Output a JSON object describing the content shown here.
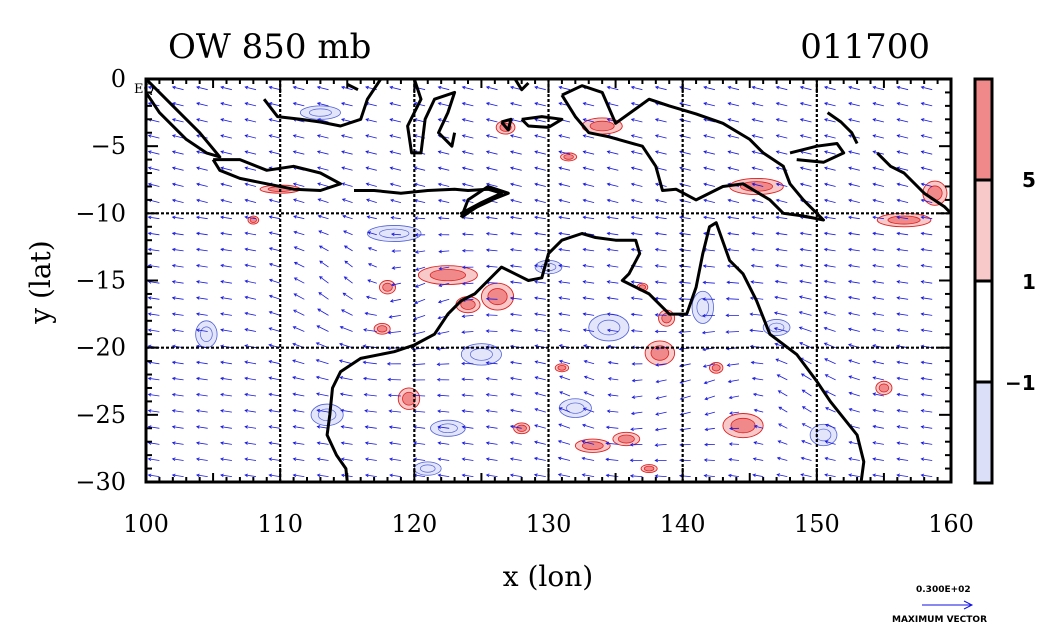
{
  "chart_data": {
    "type": "contour-map-with-vectors",
    "title_left": "OW 850 mb",
    "title_right": "011700",
    "xlabel": "x (lon)",
    "ylabel": "y (lat)",
    "xlim": [
      100,
      160
    ],
    "ylim": [
      -30,
      0
    ],
    "xticks": [
      100,
      110,
      120,
      130,
      140,
      150,
      160
    ],
    "yticks": [
      0,
      -5,
      -10,
      -15,
      -20,
      -25,
      -30
    ],
    "ytick_labels": [
      "0",
      "−5",
      "−10",
      "−15",
      "−20",
      "−25",
      "−30"
    ],
    "corner_label": "EQ",
    "gridlines_x": [
      110,
      120,
      130,
      140,
      150
    ],
    "gridlines_y": [
      -10,
      -20
    ],
    "colorbar": {
      "levels": [
        "5",
        "1",
        "−1"
      ],
      "bands": [
        {
          "range": "> 5",
          "color": "#f08a8a"
        },
        {
          "range": "1 to 5",
          "color": "#f8c9c9"
        },
        {
          "range": "-1 to 1",
          "color": "#ffffff"
        },
        {
          "range": "< -1",
          "color": "#dcdff8"
        }
      ]
    },
    "vector_legend": {
      "value": "0.300E+02",
      "label": "MAXIMUM VECTOR"
    },
    "positive_blobs": [
      {
        "lon": 122.5,
        "lat": -14.6,
        "rx": 2.2,
        "ry": 0.7
      },
      {
        "lon": 126.2,
        "lat": -16.2,
        "rx": 1.2,
        "ry": 1.0
      },
      {
        "lon": 124.0,
        "lat": -16.8,
        "rx": 0.9,
        "ry": 0.6
      },
      {
        "lon": 138.3,
        "lat": -20.4,
        "rx": 1.1,
        "ry": 0.9
      },
      {
        "lon": 138.8,
        "lat": -17.8,
        "rx": 0.6,
        "ry": 0.6
      },
      {
        "lon": 119.6,
        "lat": -23.8,
        "rx": 0.8,
        "ry": 0.8
      },
      {
        "lon": 118.0,
        "lat": -15.5,
        "rx": 0.6,
        "ry": 0.5
      },
      {
        "lon": 117.6,
        "lat": -18.6,
        "rx": 0.6,
        "ry": 0.4
      },
      {
        "lon": 133.3,
        "lat": -27.3,
        "rx": 1.3,
        "ry": 0.5
      },
      {
        "lon": 135.8,
        "lat": -26.8,
        "rx": 1.0,
        "ry": 0.5
      },
      {
        "lon": 144.5,
        "lat": -25.8,
        "rx": 1.5,
        "ry": 0.9
      },
      {
        "lon": 128.0,
        "lat": -26.0,
        "rx": 0.6,
        "ry": 0.4
      },
      {
        "lon": 156.5,
        "lat": -10.5,
        "rx": 2.0,
        "ry": 0.5
      },
      {
        "lon": 158.8,
        "lat": -8.5,
        "rx": 0.9,
        "ry": 0.9
      },
      {
        "lon": 137.0,
        "lat": -15.5,
        "rx": 0.4,
        "ry": 0.3
      },
      {
        "lon": 142.5,
        "lat": -21.5,
        "rx": 0.5,
        "ry": 0.4
      },
      {
        "lon": 155.0,
        "lat": -23.0,
        "rx": 0.6,
        "ry": 0.5
      },
      {
        "lon": 131.5,
        "lat": -5.8,
        "rx": 0.6,
        "ry": 0.3
      },
      {
        "lon": 126.8,
        "lat": -3.6,
        "rx": 0.7,
        "ry": 0.5
      },
      {
        "lon": 110.0,
        "lat": -8.2,
        "rx": 1.5,
        "ry": 0.3
      },
      {
        "lon": 137.5,
        "lat": -29.0,
        "rx": 0.6,
        "ry": 0.3
      },
      {
        "lon": 145.5,
        "lat": -8.0,
        "rx": 2.0,
        "ry": 0.6
      },
      {
        "lon": 134.0,
        "lat": -3.5,
        "rx": 1.5,
        "ry": 0.6
      },
      {
        "lon": 131.0,
        "lat": -21.5,
        "rx": 0.5,
        "ry": 0.3
      },
      {
        "lon": 108.0,
        "lat": -10.5,
        "rx": 0.4,
        "ry": 0.3
      }
    ],
    "negative_blobs": [
      {
        "lon": 125.0,
        "lat": -20.5,
        "rx": 1.5,
        "ry": 0.8
      },
      {
        "lon": 134.5,
        "lat": -18.5,
        "rx": 1.5,
        "ry": 1.0
      },
      {
        "lon": 132.0,
        "lat": -24.5,
        "rx": 1.2,
        "ry": 0.7
      },
      {
        "lon": 122.5,
        "lat": -26.0,
        "rx": 1.3,
        "ry": 0.6
      },
      {
        "lon": 113.5,
        "lat": -25.0,
        "rx": 1.2,
        "ry": 0.8
      },
      {
        "lon": 104.5,
        "lat": -19.0,
        "rx": 0.8,
        "ry": 1.0
      },
      {
        "lon": 130.0,
        "lat": -14.0,
        "rx": 1.0,
        "ry": 0.5
      },
      {
        "lon": 141.5,
        "lat": -17.0,
        "rx": 0.8,
        "ry": 1.2
      },
      {
        "lon": 147.0,
        "lat": -18.5,
        "rx": 1.0,
        "ry": 0.6
      },
      {
        "lon": 150.5,
        "lat": -26.5,
        "rx": 1.0,
        "ry": 0.8
      },
      {
        "lon": 118.5,
        "lat": -11.5,
        "rx": 2.0,
        "ry": 0.6
      },
      {
        "lon": 113.0,
        "lat": -2.5,
        "rx": 1.5,
        "ry": 0.5
      },
      {
        "lon": 121.0,
        "lat": -29.0,
        "rx": 1.0,
        "ry": 0.5
      }
    ],
    "coastlines": [
      {
        "name": "australia-west-north",
        "points": [
          [
            115.0,
            -30.0
          ],
          [
            114.9,
            -29.0
          ],
          [
            114.2,
            -28.0
          ],
          [
            113.5,
            -26.5
          ],
          [
            113.7,
            -25.0
          ],
          [
            113.9,
            -23.0
          ],
          [
            114.5,
            -21.8
          ],
          [
            116.0,
            -20.8
          ],
          [
            118.5,
            -20.3
          ],
          [
            120.0,
            -19.8
          ],
          [
            121.5,
            -19.0
          ],
          [
            122.5,
            -17.5
          ],
          [
            123.5,
            -16.5
          ],
          [
            124.5,
            -16.0
          ],
          [
            125.5,
            -15.0
          ],
          [
            126.5,
            -14.0
          ],
          [
            127.5,
            -14.5
          ],
          [
            128.5,
            -15.0
          ],
          [
            129.5,
            -14.8
          ],
          [
            130.0,
            -13.0
          ],
          [
            131.0,
            -12.0
          ],
          [
            132.5,
            -11.5
          ],
          [
            133.5,
            -11.8
          ],
          [
            135.0,
            -12.0
          ],
          [
            136.5,
            -12.0
          ],
          [
            136.8,
            -13.0
          ],
          [
            136.0,
            -14.5
          ],
          [
            135.5,
            -15.0
          ],
          [
            137.5,
            -16.0
          ],
          [
            139.0,
            -17.5
          ],
          [
            140.3,
            -17.5
          ],
          [
            141.0,
            -15.5
          ],
          [
            141.5,
            -13.0
          ],
          [
            142.0,
            -11.0
          ],
          [
            142.5,
            -10.7
          ],
          [
            143.5,
            -13.5
          ],
          [
            144.5,
            -14.5
          ],
          [
            145.5,
            -16.5
          ],
          [
            146.5,
            -19.0
          ],
          [
            148.5,
            -20.5
          ],
          [
            150.0,
            -22.5
          ],
          [
            151.0,
            -24.0
          ],
          [
            153.0,
            -26.5
          ],
          [
            153.5,
            -28.5
          ],
          [
            153.3,
            -30.0
          ]
        ]
      },
      {
        "name": "sumatra",
        "points": [
          [
            100.0,
            0.0
          ],
          [
            101.0,
            -1.0
          ],
          [
            102.5,
            -2.5
          ],
          [
            104.0,
            -4.0
          ],
          [
            105.5,
            -5.8
          ],
          [
            104.5,
            -5.5
          ],
          [
            103.0,
            -4.5
          ],
          [
            101.0,
            -2.5
          ],
          [
            100.0,
            -1.0
          ]
        ]
      },
      {
        "name": "java",
        "points": [
          [
            105.0,
            -6.0
          ],
          [
            107.0,
            -6.0
          ],
          [
            109.0,
            -6.8
          ],
          [
            111.0,
            -6.5
          ],
          [
            113.0,
            -7.0
          ],
          [
            114.5,
            -7.8
          ],
          [
            113.0,
            -8.3
          ],
          [
            111.0,
            -8.2
          ],
          [
            109.0,
            -7.8
          ],
          [
            107.0,
            -7.4
          ],
          [
            105.5,
            -6.8
          ],
          [
            105.0,
            -6.0
          ]
        ]
      },
      {
        "name": "lesser-sunda",
        "points": [
          [
            115.5,
            -8.3
          ],
          [
            117.0,
            -8.3
          ],
          [
            119.0,
            -8.5
          ],
          [
            121.0,
            -8.3
          ],
          [
            123.0,
            -8.2
          ],
          [
            124.0,
            -8.3
          ],
          [
            125.5,
            -8.2
          ],
          [
            126.5,
            -8.5
          ],
          [
            125.0,
            -9.2
          ],
          [
            123.5,
            -10.0
          ],
          [
            124.5,
            -9.6
          ],
          [
            125.8,
            -9.0
          ]
        ]
      },
      {
        "name": "borneo",
        "points": [
          [
            108.8,
            -1.5
          ],
          [
            109.8,
            -2.8
          ],
          [
            111.5,
            -3.0
          ],
          [
            113.0,
            -3.2
          ],
          [
            114.5,
            -3.5
          ],
          [
            116.0,
            -3.0
          ],
          [
            116.5,
            -1.5
          ],
          [
            117.5,
            0.0
          ]
        ]
      },
      {
        "name": "sulawesi",
        "points": [
          [
            120.0,
            0.0
          ],
          [
            120.5,
            -1.5
          ],
          [
            119.5,
            -3.5
          ],
          [
            119.8,
            -5.5
          ],
          [
            120.5,
            -5.5
          ],
          [
            120.8,
            -3.0
          ],
          [
            121.5,
            -1.5
          ],
          [
            123.0,
            -1.0
          ],
          [
            122.5,
            -2.5
          ],
          [
            121.8,
            -4.0
          ],
          [
            122.8,
            -5.0
          ],
          [
            123.0,
            -4.0
          ]
        ]
      },
      {
        "name": "new-guinea",
        "points": [
          [
            131.0,
            -1.2
          ],
          [
            132.5,
            -0.5
          ],
          [
            134.0,
            -1.0
          ],
          [
            135.0,
            -3.3
          ],
          [
            137.5,
            -1.5
          ],
          [
            139.0,
            -2.0
          ],
          [
            141.0,
            -2.6
          ],
          [
            143.0,
            -3.3
          ],
          [
            145.0,
            -4.5
          ],
          [
            146.0,
            -5.5
          ],
          [
            147.5,
            -6.5
          ],
          [
            148.0,
            -7.8
          ],
          [
            149.0,
            -9.0
          ],
          [
            150.5,
            -10.5
          ],
          [
            149.0,
            -10.2
          ],
          [
            147.5,
            -10.0
          ],
          [
            146.5,
            -9.0
          ],
          [
            144.5,
            -7.8
          ],
          [
            143.0,
            -8.0
          ],
          [
            141.0,
            -9.0
          ],
          [
            139.5,
            -8.2
          ],
          [
            138.5,
            -8.3
          ],
          [
            138.0,
            -6.5
          ],
          [
            137.0,
            -5.0
          ],
          [
            134.5,
            -4.3
          ],
          [
            133.0,
            -4.0
          ],
          [
            132.0,
            -2.8
          ],
          [
            131.0,
            -1.2
          ]
        ]
      },
      {
        "name": "timor-islands",
        "points": [
          [
            123.5,
            -10.3
          ],
          [
            125.0,
            -9.3
          ],
          [
            127.0,
            -8.5
          ],
          [
            125.5,
            -8.0
          ],
          [
            124.0,
            -9.0
          ],
          [
            123.5,
            -10.3
          ]
        ]
      },
      {
        "name": "solomons",
        "points": [
          [
            154.5,
            -5.5
          ],
          [
            155.5,
            -6.5
          ],
          [
            156.5,
            -7.0
          ],
          [
            158.0,
            -8.5
          ],
          [
            159.5,
            -9.5
          ],
          [
            160.0,
            -10.0
          ]
        ]
      },
      {
        "name": "new-britain",
        "points": [
          [
            148.0,
            -5.5
          ],
          [
            150.0,
            -5.0
          ],
          [
            151.5,
            -4.8
          ],
          [
            152.0,
            -5.5
          ],
          [
            150.5,
            -6.2
          ],
          [
            148.5,
            -6.0
          ]
        ]
      },
      {
        "name": "new-ireland",
        "points": [
          [
            150.8,
            -2.5
          ],
          [
            151.8,
            -3.2
          ],
          [
            152.6,
            -4.0
          ],
          [
            153.0,
            -4.8
          ]
        ]
      },
      {
        "name": "seram",
        "points": [
          [
            128.0,
            -3.0
          ],
          [
            129.5,
            -2.8
          ],
          [
            131.0,
            -3.0
          ],
          [
            130.0,
            -3.6
          ],
          [
            128.5,
            -3.5
          ],
          [
            128.0,
            -3.0
          ]
        ]
      },
      {
        "name": "halmahera",
        "points": [
          [
            127.5,
            0.0
          ],
          [
            128.0,
            -0.8
          ],
          [
            128.5,
            -0.3
          ]
        ]
      },
      {
        "name": "small-isle-1",
        "points": [
          [
            126.5,
            -3.2
          ],
          [
            127.2,
            -3.0
          ],
          [
            127.0,
            -3.8
          ],
          [
            126.5,
            -3.2
          ]
        ]
      },
      {
        "name": "small-isle-2",
        "points": [
          [
            115.0,
            -0.4
          ],
          [
            115.8,
            -0.8
          ]
        ]
      }
    ]
  }
}
